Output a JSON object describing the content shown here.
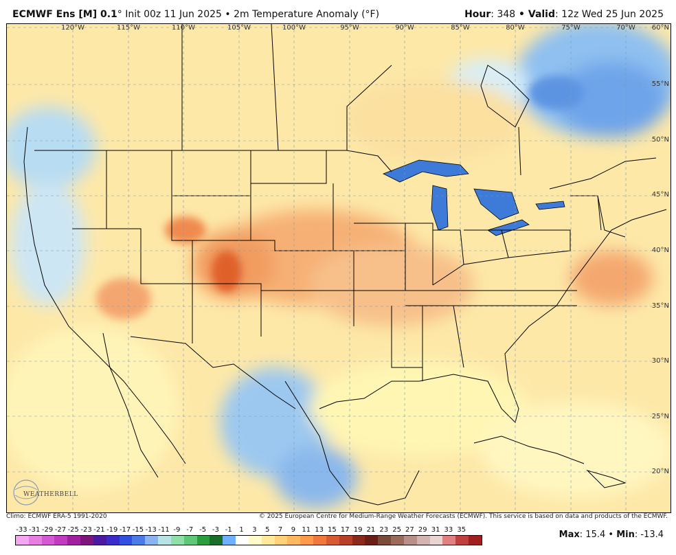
{
  "header": {
    "model": "ECMWF Ens [M] 0.1",
    "init": "° Init 00z 11 Jun 2025",
    "sep": " • ",
    "field": "2m Temperature Anomaly (°F)",
    "hour_label": "Hour",
    "hour_value": ": 348",
    "valid_label": " • Valid",
    "valid_value": ": 12z Wed 25 Jun 2025"
  },
  "map": {
    "lon_labels": [
      "120°W",
      "115°W",
      "110°W",
      "105°W",
      "100°W",
      "95°W",
      "90°W",
      "85°W",
      "80°W",
      "75°W",
      "70°W"
    ],
    "lat_labels": [
      "60°N",
      "55°N",
      "50°N",
      "45°N",
      "40°N",
      "35°N",
      "30°N",
      "25°N",
      "20°N"
    ],
    "logo_text": "WEATHERBELL"
  },
  "footer": {
    "climo": "Climo: ECMWF ERA-5 1991-2020",
    "copyright": "© 2025 European Centre for Medium-Range Weather Forecasts (ECMWF). This service is based on data and products of the ECMWF."
  },
  "legend": {
    "labels": [
      "-33",
      "-31",
      "-29",
      "-27",
      "-25",
      "-23",
      "-21",
      "-19",
      "-17",
      "-15",
      "-13",
      "-11",
      "-9",
      "-7",
      "-5",
      "-3",
      "-1",
      "1",
      "3",
      "5",
      "7",
      "9",
      "11",
      "13",
      "15",
      "17",
      "19",
      "21",
      "23",
      "25",
      "27",
      "29",
      "31",
      "33",
      "35"
    ],
    "colors": [
      "#f4a6f0",
      "#e77fe3",
      "#d558d4",
      "#c23ac0",
      "#a1209f",
      "#7d157b",
      "#4b1aa0",
      "#3a2cc8",
      "#3150e0",
      "#4a7be6",
      "#8ab4f0",
      "#b8e3e6",
      "#8ee0a8",
      "#5cc878",
      "#2a9e3c",
      "#1a6e2a",
      "#6fb0ff",
      "#ffffff",
      "#fffbc8",
      "#ffe89a",
      "#ffd27a",
      "#ffb860",
      "#ff9a48",
      "#f0783a",
      "#d85a30",
      "#b83e28",
      "#8a2a1c",
      "#6b1e16",
      "#7a4a3a",
      "#9a6a5a",
      "#b8908a",
      "#d4b4b0",
      "#e8d4d2",
      "#e08080",
      "#c04040",
      "#a02020"
    ]
  },
  "stats": {
    "max_label": "Max",
    "max_value": ": 15.4",
    "sep": " • ",
    "min_label": "Min",
    "min_value": ": -13.4"
  }
}
